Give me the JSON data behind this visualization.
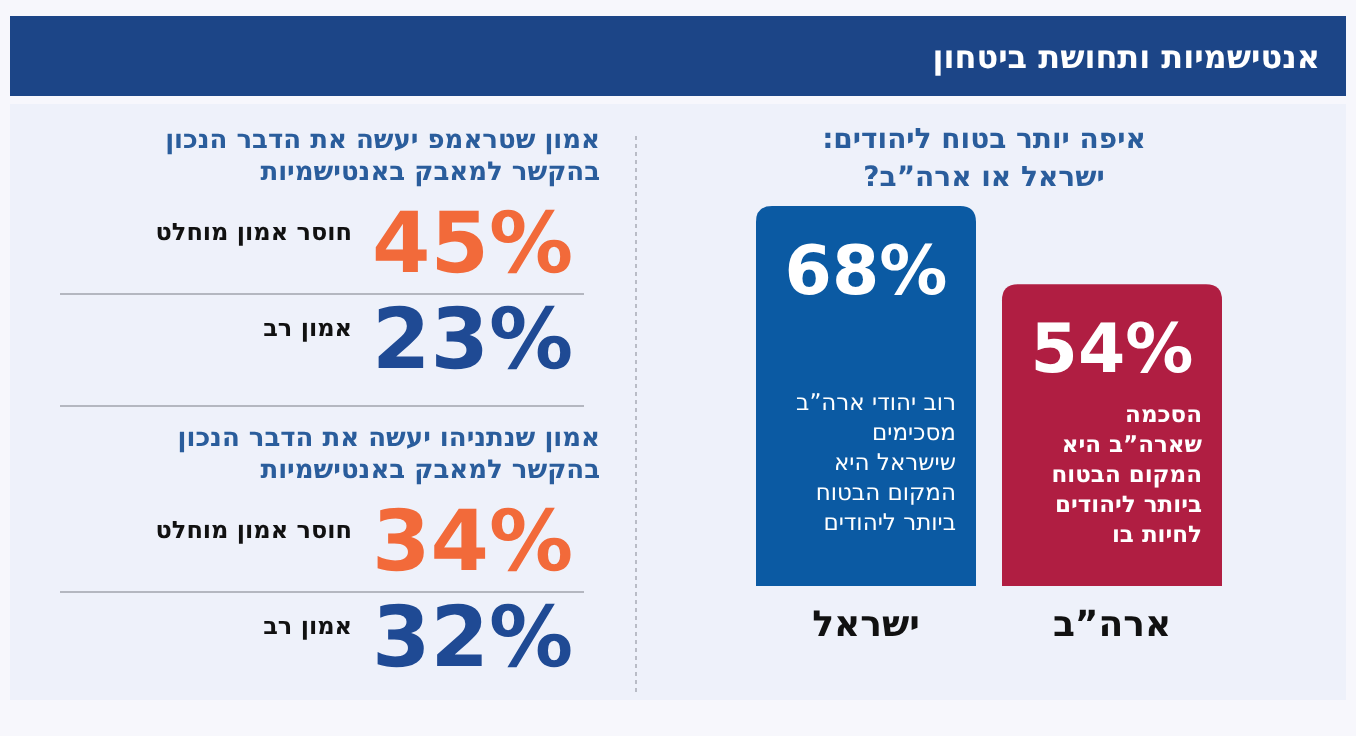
{
  "chart_data": [
    {
      "type": "bar",
      "title": "אנטישמיות ותחושת ביטחון",
      "subtitle": "איפה יותר בטוח ליהודים:\nישראל או ארה”ב?",
      "categories": [
        "ישראל",
        "ארה”ב"
      ],
      "values": [
        68,
        54
      ],
      "value_labels": [
        "68%",
        "54%"
      ],
      "colors": [
        "#0b5aa3",
        "#b01e42"
      ],
      "annotations": [
        "רוב יהודי ארה”ב\nמסכימים\nשישראל היא\nהמקום הבטוח\nביותר ליהודים",
        "הסכמה\nשארה”ב היא\nהמקום הבטוח\nביותר ליהודים\nלחיות בו"
      ]
    },
    {
      "type": "other",
      "title": "אמון שטראמפ  יעשה את הדבר הנכון\nבהקשר למאבק באנטישמיות",
      "categories": [
        "חוסר אמון מוחלט",
        "אמון רב"
      ],
      "value_labels": [
        "45%",
        "23%"
      ],
      "colors": [
        "#f26a3a",
        "#1f4a94"
      ]
    },
    {
      "type": "other",
      "title": "אמון שנתניהו יעשה את הדבר הנכון\nבהקשר למאבק באנטישמיות",
      "categories": [
        "חוסר אמון מוחלט",
        "אמון רב"
      ],
      "value_labels": [
        "34%",
        "32%"
      ],
      "colors": [
        "#f26a3a",
        "#1f4a94"
      ]
    }
  ]
}
